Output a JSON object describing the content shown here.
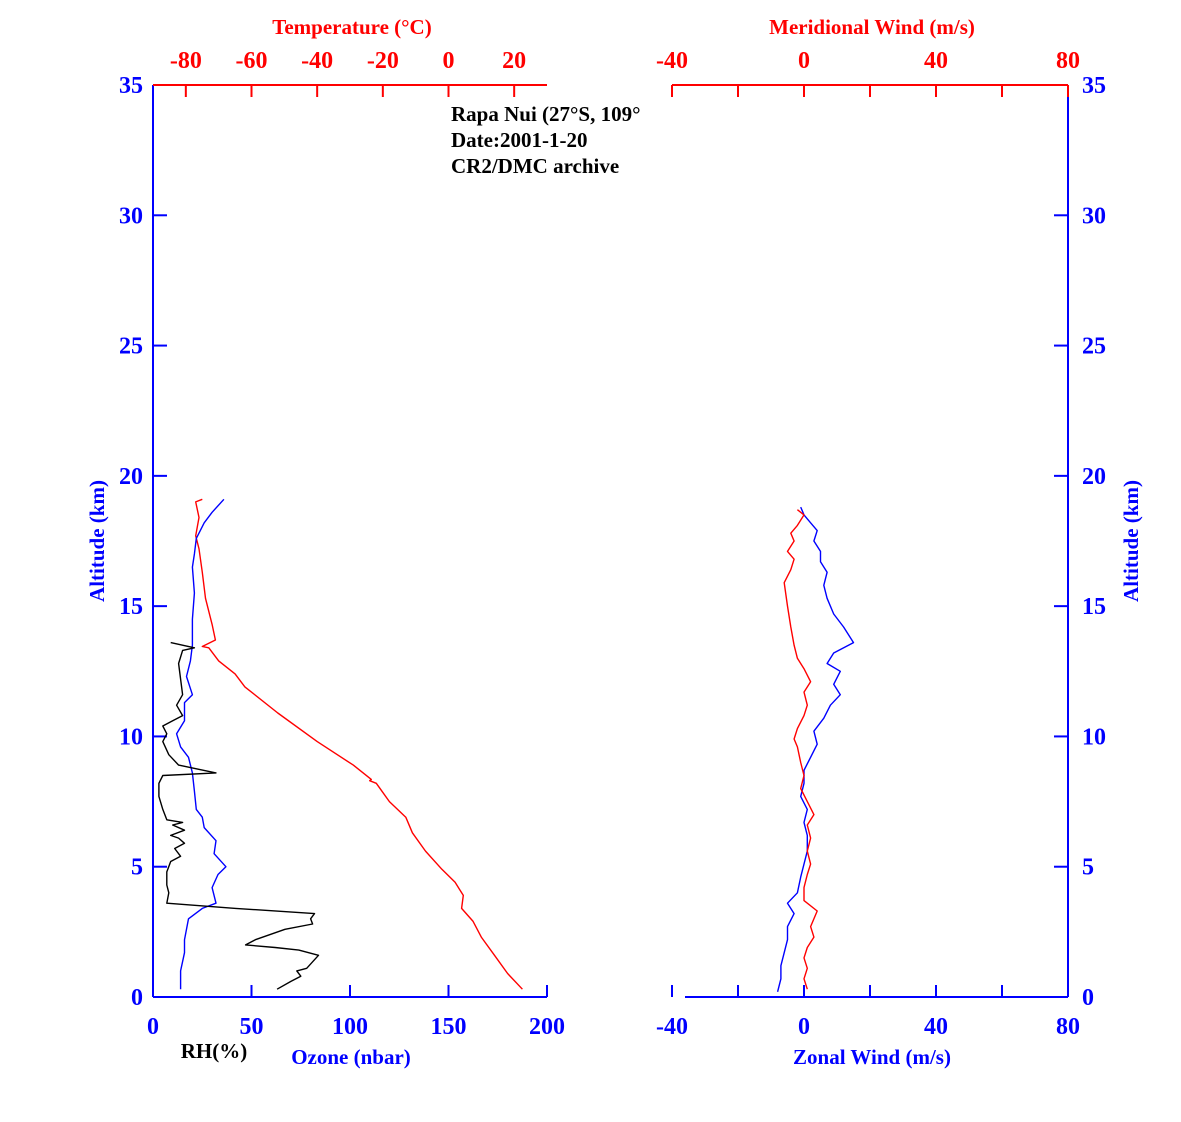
{
  "chart_data": [
    {
      "type": "line",
      "panel": "left",
      "info_lines": [
        "Rapa Nui (27°S, 109°",
        "Date:2001-1-20",
        "CR2/DMC archive"
      ],
      "y_axis": {
        "label": "Altitude (km)",
        "range": [
          0,
          35
        ],
        "ticks": [
          0,
          5,
          10,
          15,
          20,
          25,
          30,
          35
        ],
        "color": "#0000ff"
      },
      "x_bottom": {
        "label": "Ozone (nbar)",
        "extra_label": "RH(%)",
        "range": [
          0,
          200
        ],
        "ticks": [
          0,
          50,
          100,
          150,
          200
        ],
        "color": "#0000ff"
      },
      "x_top": {
        "label": "Temperature (°C)",
        "range": [
          -90,
          30
        ],
        "ticks": [
          -80,
          -60,
          -40,
          -20,
          0,
          20
        ],
        "color": "#ff0000"
      },
      "series": [
        {
          "name": "Temperature",
          "axis": "top",
          "color": "#ff0000",
          "points": [
            [
              22.5,
              0.3
            ],
            [
              18,
              0.9
            ],
            [
              14,
              1.6
            ],
            [
              10,
              2.3
            ],
            [
              7.5,
              2.9
            ],
            [
              4,
              3.4
            ],
            [
              4.5,
              3.9
            ],
            [
              2,
              4.4
            ],
            [
              -2,
              4.9
            ],
            [
              -7,
              5.6
            ],
            [
              -11,
              6.3
            ],
            [
              -13,
              6.9
            ],
            [
              -18,
              7.5
            ],
            [
              -22,
              8.2
            ],
            [
              -24,
              8.3
            ],
            [
              -23.5,
              8.35
            ],
            [
              -29,
              8.9
            ],
            [
              -40,
              9.8
            ],
            [
              -52,
              10.9
            ],
            [
              -62,
              11.9
            ],
            [
              -65,
              12.4
            ],
            [
              -70,
              12.9
            ],
            [
              -73,
              13.4
            ],
            [
              -75,
              13.45
            ],
            [
              -71,
              13.7
            ],
            [
              -72,
              14.3
            ],
            [
              -74,
              15.3
            ],
            [
              -75,
              16.3
            ],
            [
              -76,
              17.2
            ],
            [
              -77,
              17.7
            ],
            [
              -76,
              18.4
            ],
            [
              -77,
              19.0
            ],
            [
              -75,
              19.1
            ]
          ]
        },
        {
          "name": "Ozone",
          "axis": "bottom",
          "color": "#0000ff",
          "points": [
            [
              14,
              0.3
            ],
            [
              14,
              1.0
            ],
            [
              16,
              1.7
            ],
            [
              16,
              2.2
            ],
            [
              17,
              2.6
            ],
            [
              18,
              3.0
            ],
            [
              25,
              3.4
            ],
            [
              32,
              3.6
            ],
            [
              30,
              4.2
            ],
            [
              33,
              4.7
            ],
            [
              37,
              5.0
            ],
            [
              31,
              5.5
            ],
            [
              32,
              6.0
            ],
            [
              26,
              6.5
            ],
            [
              25,
              6.9
            ],
            [
              22,
              7.2
            ],
            [
              21,
              7.9
            ],
            [
              20,
              8.6
            ],
            [
              18,
              9.2
            ],
            [
              14,
              9.6
            ],
            [
              12,
              10.1
            ],
            [
              16,
              10.6
            ],
            [
              16,
              11.3
            ],
            [
              20,
              11.6
            ],
            [
              17,
              12.3
            ],
            [
              19,
              12.9
            ],
            [
              20,
              13.5
            ],
            [
              20,
              14.5
            ],
            [
              21,
              15.5
            ],
            [
              20,
              16.5
            ],
            [
              21,
              17.0
            ],
            [
              22,
              17.6
            ],
            [
              26,
              18.2
            ],
            [
              30,
              18.6
            ],
            [
              36,
              19.1
            ]
          ]
        },
        {
          "name": "RH",
          "axis": "bottom",
          "color": "#000000",
          "points": [
            [
              63,
              0.3
            ],
            [
              70,
              0.6
            ],
            [
              75,
              0.8
            ],
            [
              73,
              1.0
            ],
            [
              78,
              1.1
            ],
            [
              84,
              1.6
            ],
            [
              74,
              1.8
            ],
            [
              62,
              1.9
            ],
            [
              47,
              2.0
            ],
            [
              52,
              2.2
            ],
            [
              67,
              2.6
            ],
            [
              81,
              2.8
            ],
            [
              80,
              3.0
            ],
            [
              82,
              3.2
            ],
            [
              42,
              3.4
            ],
            [
              7,
              3.6
            ],
            [
              8,
              4.0
            ],
            [
              7,
              4.3
            ],
            [
              7,
              4.8
            ],
            [
              9,
              5.2
            ],
            [
              14,
              5.4
            ],
            [
              11,
              5.7
            ],
            [
              16,
              5.9
            ],
            [
              13,
              6.1
            ],
            [
              9,
              6.2
            ],
            [
              16,
              6.4
            ],
            [
              10,
              6.6
            ],
            [
              15,
              6.7
            ],
            [
              7,
              6.8
            ],
            [
              5,
              7.2
            ],
            [
              3,
              7.7
            ],
            [
              3,
              8.2
            ],
            [
              5,
              8.5
            ],
            [
              32,
              8.6
            ],
            [
              13,
              8.9
            ],
            [
              8,
              9.3
            ],
            [
              5,
              9.8
            ],
            [
              7,
              10.1
            ],
            [
              5,
              10.4
            ],
            [
              10,
              10.6
            ],
            [
              15,
              10.8
            ],
            [
              12,
              11.2
            ],
            [
              15,
              11.6
            ],
            [
              14,
              12.2
            ],
            [
              13,
              12.8
            ],
            [
              15,
              13.3
            ],
            [
              21,
              13.4
            ],
            [
              9,
              13.6
            ]
          ]
        }
      ]
    },
    {
      "type": "line",
      "panel": "right",
      "y_axis": {
        "label": "Altitude (km)",
        "range": [
          0,
          35
        ],
        "ticks": [
          0,
          5,
          10,
          15,
          20,
          25,
          30,
          35
        ],
        "color": "#0000ff"
      },
      "x_bottom": {
        "label": "Zonal Wind (m/s)",
        "range": [
          -40,
          80
        ],
        "ticks": [
          -40,
          0,
          40,
          80
        ],
        "color": "#0000ff"
      },
      "x_top": {
        "label": "Meridional Wind (m/s)",
        "range": [
          -40,
          80
        ],
        "ticks": [
          -40,
          0,
          40,
          80
        ],
        "color": "#ff0000"
      },
      "series": [
        {
          "name": "Zonal Wind",
          "axis": "bottom",
          "color": "#0000ff",
          "points": [
            [
              -8,
              0.2
            ],
            [
              -7,
              0.7
            ],
            [
              -7,
              1.2
            ],
            [
              -6,
              1.7
            ],
            [
              -5,
              2.2
            ],
            [
              -5,
              2.7
            ],
            [
              -3,
              3.2
            ],
            [
              -5,
              3.6
            ],
            [
              -2,
              4.0
            ],
            [
              -1,
              4.6
            ],
            [
              0,
              5.1
            ],
            [
              1,
              5.6
            ],
            [
              1,
              6.2
            ],
            [
              0,
              6.7
            ],
            [
              1,
              7.2
            ],
            [
              -1,
              7.7
            ],
            [
              0,
              8.2
            ],
            [
              0,
              8.7
            ],
            [
              2,
              9.2
            ],
            [
              4,
              9.7
            ],
            [
              3,
              10.2
            ],
            [
              6,
              10.7
            ],
            [
              8,
              11.2
            ],
            [
              11,
              11.6
            ],
            [
              9,
              12.0
            ],
            [
              11,
              12.5
            ],
            [
              7,
              12.8
            ],
            [
              9,
              13.2
            ],
            [
              15,
              13.6
            ],
            [
              12,
              14.2
            ],
            [
              9,
              14.7
            ],
            [
              7,
              15.3
            ],
            [
              6,
              15.8
            ],
            [
              7,
              16.3
            ],
            [
              5,
              16.7
            ],
            [
              5,
              17.1
            ],
            [
              3,
              17.5
            ],
            [
              4,
              17.9
            ],
            [
              2,
              18.2
            ],
            [
              0,
              18.5
            ],
            [
              -1,
              18.8
            ]
          ]
        },
        {
          "name": "Meridional Wind",
          "axis": "top",
          "color": "#ff0000",
          "points": [
            [
              1,
              0.3
            ],
            [
              0,
              0.7
            ],
            [
              1,
              1.1
            ],
            [
              0,
              1.5
            ],
            [
              1,
              1.9
            ],
            [
              3,
              2.3
            ],
            [
              2,
              2.7
            ],
            [
              4,
              3.3
            ],
            [
              0,
              3.7
            ],
            [
              0,
              4.2
            ],
            [
              1,
              4.7
            ],
            [
              2,
              5.1
            ],
            [
              1,
              5.6
            ],
            [
              2,
              6.1
            ],
            [
              1,
              6.6
            ],
            [
              3,
              7.0
            ],
            [
              1,
              7.5
            ],
            [
              -1,
              8.0
            ],
            [
              0,
              8.5
            ],
            [
              -1,
              9.0
            ],
            [
              -2,
              9.6
            ],
            [
              -3,
              9.9
            ],
            [
              -2,
              10.3
            ],
            [
              0,
              10.8
            ],
            [
              1,
              11.2
            ],
            [
              0,
              11.7
            ],
            [
              2,
              12.1
            ],
            [
              0,
              12.6
            ],
            [
              -2,
              13.0
            ],
            [
              -3,
              13.5
            ],
            [
              -4,
              14.2
            ],
            [
              -5,
              15.0
            ],
            [
              -6,
              15.9
            ],
            [
              -4,
              16.4
            ],
            [
              -3,
              16.8
            ],
            [
              -5,
              17.1
            ],
            [
              -3,
              17.5
            ],
            [
              -4,
              17.8
            ],
            [
              -2,
              18.1
            ],
            [
              0,
              18.5
            ],
            [
              -2,
              18.7
            ]
          ]
        }
      ]
    }
  ]
}
